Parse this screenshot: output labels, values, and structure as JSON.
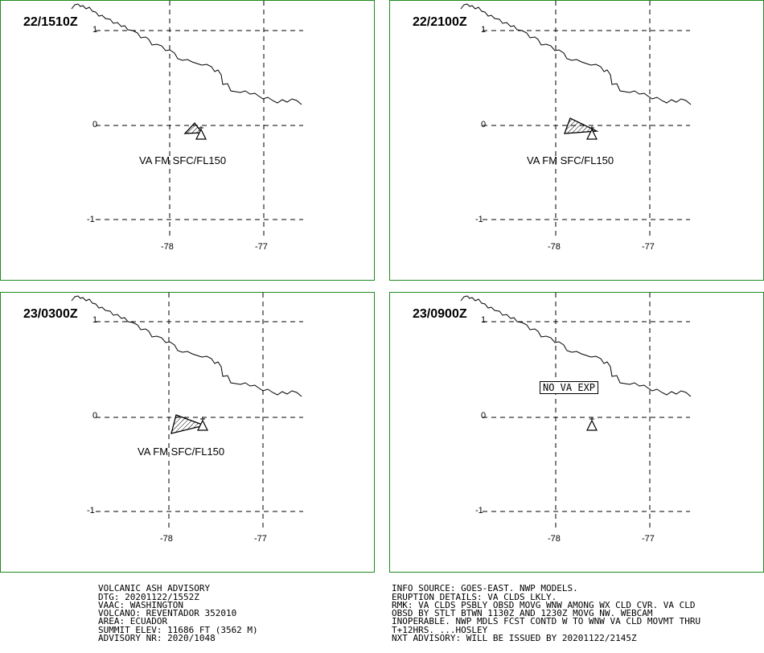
{
  "panels": [
    {
      "time": "22/1510Z",
      "label": "VA FM SFC/FL150"
    },
    {
      "time": "22/2100Z",
      "label": "VA FM SFC/FL150"
    },
    {
      "time": "23/0300Z",
      "label": "VA FM SFC/FL150"
    },
    {
      "time": "23/0900Z",
      "label": "NO VA EXP"
    }
  ],
  "lat_ticks": [
    "1",
    "0",
    "-1"
  ],
  "lon_ticks": [
    "-78",
    "-77"
  ],
  "advisory_left": [
    "VOLCANIC ASH ADVISORY",
    "DTG: 20201122/1552Z",
    "VAAC: WASHINGTON",
    "VOLCANO: REVENTADOR 352010",
    "AREA: ECUADOR",
    "SUMMIT ELEV: 11686 FT (3562 M)",
    "ADVISORY NR: 2020/1048"
  ],
  "advisory_right": [
    "INFO SOURCE: GOES-EAST. NWP MODELS.",
    "ERUPTION DETAILS: VA CLDS LKLY.",
    "RMK: VA CLDS PSBLY OBSD MOVG WNW AMONG WX CLD CVR. VA CLD",
    "OBSD BY STLT BTWN 1130Z AND 1230Z MOVG NW. WEBCAM",
    "INOPERABLE. NWP MDLS FCST CONTD W TO WNW VA CLD MOVMT THRU",
    "T+12HRS. ...HOSLEY",
    "NXT ADVISORY: WILL BE ISSUED BY 20201122/2145Z"
  ],
  "colors": {
    "panel_border": "#1f8a1f",
    "ink": "#000000"
  },
  "icons": {
    "volcano": "volcano-icon"
  }
}
